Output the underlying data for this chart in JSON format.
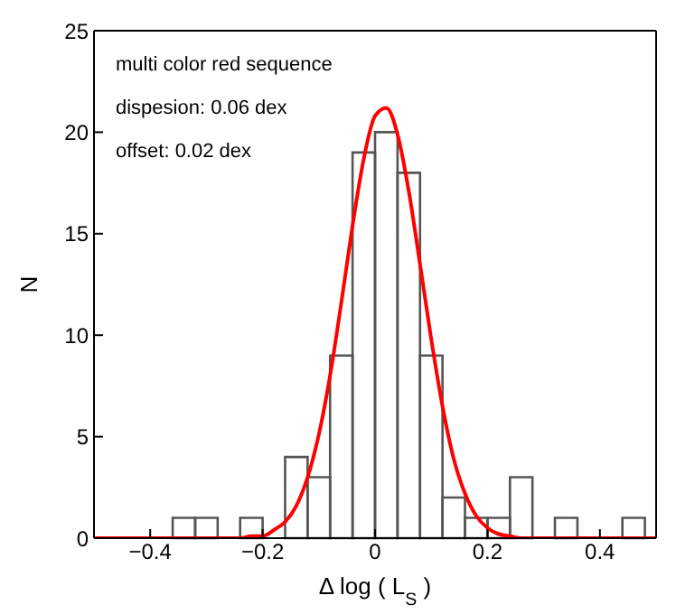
{
  "chart_data": {
    "type": "histogram",
    "xlabel": "Δ log ( L$_{S}$ )",
    "ylabel": "N",
    "annotations": [
      "multi color red sequence",
      "dispesion: 0.06 dex",
      "offset: 0.02 dex"
    ],
    "bins": [
      -0.36,
      -0.32,
      -0.28,
      -0.24,
      -0.2,
      -0.16,
      -0.12,
      -0.08,
      -0.04,
      0,
      0.04,
      0.08,
      0.12,
      0.16,
      0.2,
      0.24,
      0.28,
      0.32,
      0.36,
      0.4,
      0.44,
      0.48
    ],
    "series": [
      {
        "color": "#555555",
        "values": [
          1,
          1,
          0,
          1,
          0,
          4,
          3,
          9,
          19,
          20,
          18,
          9,
          2,
          1,
          1,
          3,
          0,
          1,
          0,
          0,
          1
        ]
      },
      {
        "type": "line",
        "color": "#ff0000",
        "x": [
          -0.5,
          -0.24,
          -0.22,
          -0.2,
          -0.18,
          -0.16,
          -0.14,
          -0.12,
          -0.1,
          -0.08,
          -0.06,
          -0.04,
          -0.02,
          0,
          0.02,
          0.04,
          0.06,
          0.08,
          0.1,
          0.12,
          0.14,
          0.16,
          0.18,
          0.2,
          0.22,
          0.24,
          0.26,
          0.5
        ],
        "values": [
          0,
          0,
          0.1,
          0.1,
          0.4,
          0.8,
          1.6,
          3.0,
          5.1,
          8.0,
          11.6,
          15.4,
          18.7,
          20.8,
          21.2,
          19.9,
          17.1,
          13.5,
          9.8,
          6.5,
          3.9,
          2.2,
          1.1,
          0.5,
          0.2,
          0.1,
          0,
          0
        ]
      }
    ],
    "xlim": [
      -0.5,
      0.5
    ],
    "xticks": [
      {
        "value": -0.4,
        "label": "−0.4"
      },
      {
        "value": -0.2,
        "label": "−0.2"
      },
      0,
      0.2,
      0.4
    ],
    "ylim": [
      0,
      25
    ],
    "yticks": [
      0,
      5,
      10,
      15,
      20,
      25
    ]
  }
}
